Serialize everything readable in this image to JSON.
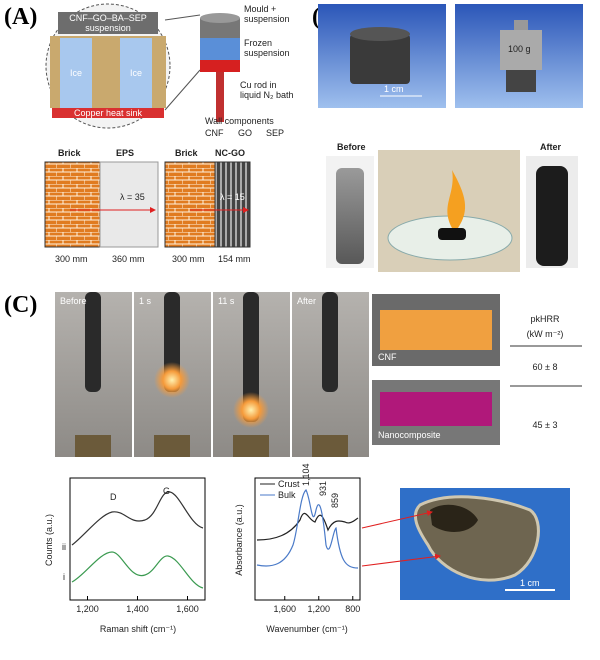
{
  "panel_a": {
    "label": "(A)",
    "inset": {
      "suspension": "CNF–GO–BA–SEP",
      "suspension_word": "suspension",
      "ice": [
        "Ice",
        "Ice"
      ],
      "heat_sink": "Copper heat sink",
      "wall_components": "Wall components",
      "components": [
        "CNF",
        "GO",
        "SEP"
      ]
    },
    "mould": {
      "mould": "Mould +",
      "mould_2": "suspension",
      "frozen": "Frozen",
      "frozen_2": "suspension",
      "rod": "Cu rod in",
      "rod_2": "liquid N₂ bath"
    },
    "walls": [
      {
        "left": "Brick",
        "right": "EPS",
        "lambda": "λ = 35",
        "left_thickness": "300 mm",
        "right_thickness": "360 mm"
      },
      {
        "left": "Brick",
        "right": "NC-GO",
        "lambda": "λ = 15",
        "left_thickness": "300 mm",
        "right_thickness": "154 mm"
      }
    ]
  },
  "panel_b": {
    "label": "(B)",
    "scale": "1 cm",
    "weight": "100 g",
    "before": "Before",
    "after": "After"
  },
  "panel_c": {
    "label": "(C)",
    "frames": [
      "Before",
      "1 s",
      "11 s",
      "After"
    ],
    "samples": [
      "CNF",
      "Nanocomposite"
    ],
    "table": {
      "header": "pkHRR",
      "unit": "(kW m⁻²)",
      "rows": [
        "60 ± 8",
        "45 ± 3"
      ]
    },
    "raman": {
      "y_label": "Counts (a.u.)",
      "x_label": "Raman shift (cm⁻¹)",
      "peaks": [
        "D",
        "G"
      ],
      "traces": [
        "ii",
        "i"
      ],
      "xlim": [
        1130,
        1670
      ],
      "xticks": [
        {
          "value": 1200,
          "label": "1,200"
        },
        {
          "value": 1400,
          "label": "1,400"
        },
        {
          "value": 1600,
          "label": "1,600"
        }
      ]
    },
    "ftir": {
      "y_label": "Absorbance (a.u.)",
      "x_label": "Wavenumber (cm⁻¹)",
      "legend": [
        "Crust",
        "Bulk"
      ],
      "peaks": [
        "1,104",
        "931",
        "859"
      ],
      "xlim": [
        1950,
        715
      ],
      "xticks": [
        {
          "value": 1600,
          "label": "1,600"
        },
        {
          "value": 1200,
          "label": "1,200"
        },
        {
          "value": 800,
          "label": "800"
        }
      ]
    },
    "photo_scale": "1 cm"
  }
}
